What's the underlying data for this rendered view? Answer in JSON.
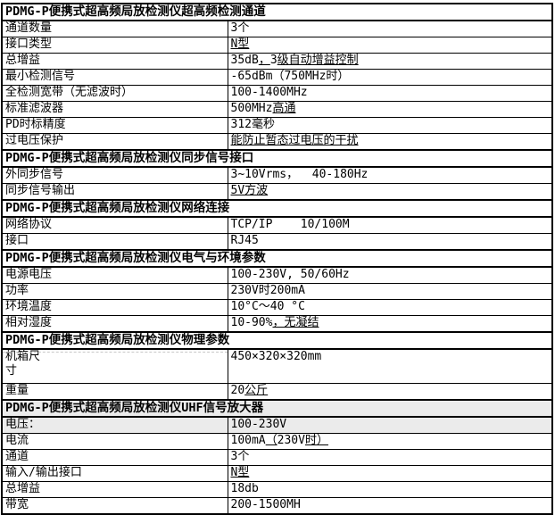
{
  "colors": {
    "border": "#000000",
    "text": "#000000",
    "shaded_row_bg": "#ebebeb",
    "pagebreak_dash": "#c8c8c8"
  },
  "sections": [
    {
      "title": "PDMG-P便携式超高频局放检测仪超高频检测通道",
      "rows": [
        {
          "label": "通道数量",
          "value": "3个"
        },
        {
          "label": "接口类型",
          "value": "N型",
          "underline": "all"
        },
        {
          "label": "总增益",
          "value": "35dB，3级自动增益控制",
          "underline": "cjk"
        },
        {
          "label": "最小检测信号",
          "value": "-65dBm（750MHz时）"
        },
        {
          "label": "全检测宽带（无滤波时）",
          "value": "100-1400MHz"
        },
        {
          "label": "标准滤波器",
          "value": "500MHz高通",
          "underline": "cjk"
        },
        {
          "label": "PD时标精度",
          "value": "312毫秒"
        },
        {
          "label": "过电压保护",
          "value": "能防止暂态过电压的干扰",
          "underline": "all"
        }
      ]
    },
    {
      "title": "PDMG-P便携式超高频局放检测仪同步信号接口",
      "rows": [
        {
          "label": "外同步信号",
          "value": "3~10Vrms，  40-180Hz"
        },
        {
          "label": "同步信号输出",
          "value": "5V方波",
          "underline": "all"
        }
      ]
    },
    {
      "title": "PDMG-P便携式超高频局放检测仪网络连接",
      "rows": [
        {
          "label": "网络协议",
          "value": "TCP/IP    10/100M"
        },
        {
          "label": "接口",
          "value": "RJ45"
        }
      ]
    },
    {
      "title": "PDMG-P便携式超高频局放检测仪电气与环境参数",
      "rows": [
        {
          "label": "电源电压",
          "value": "100-230V, 50/60Hz"
        },
        {
          "label": "功率",
          "value": "230V时200mA"
        },
        {
          "label": "环境温度",
          "value": "10°C～40 °C"
        },
        {
          "label": "相对湿度",
          "value": "10-90%，无凝结",
          "underline": "cjk"
        }
      ]
    },
    {
      "title": "PDMG-P便携式超高频局放检测仪物理参数",
      "rows": [
        {
          "label": "机箱尺\n寸",
          "value": "450×320×320mm",
          "double": true,
          "dashed": true
        },
        {
          "label": "重量",
          "value": "20公斤",
          "underline": "cjk"
        }
      ]
    },
    {
      "title": "PDMG-P便携式超高频局放检测仪UHF信号放大器",
      "shaded": true,
      "rows": [
        {
          "label": "电压：",
          "value": "100-230V",
          "shaded": true
        },
        {
          "label": "电流",
          "value": "100mA（230V时）",
          "underline": "cjk"
        },
        {
          "label": "通道",
          "value": "3个"
        },
        {
          "label": "输入/输出接口",
          "value": "N型",
          "underline": "all"
        },
        {
          "label": "总增益",
          "value": "18db"
        },
        {
          "label": "带宽",
          "value": "200-1500MH",
          "clipped": true
        }
      ]
    }
  ]
}
